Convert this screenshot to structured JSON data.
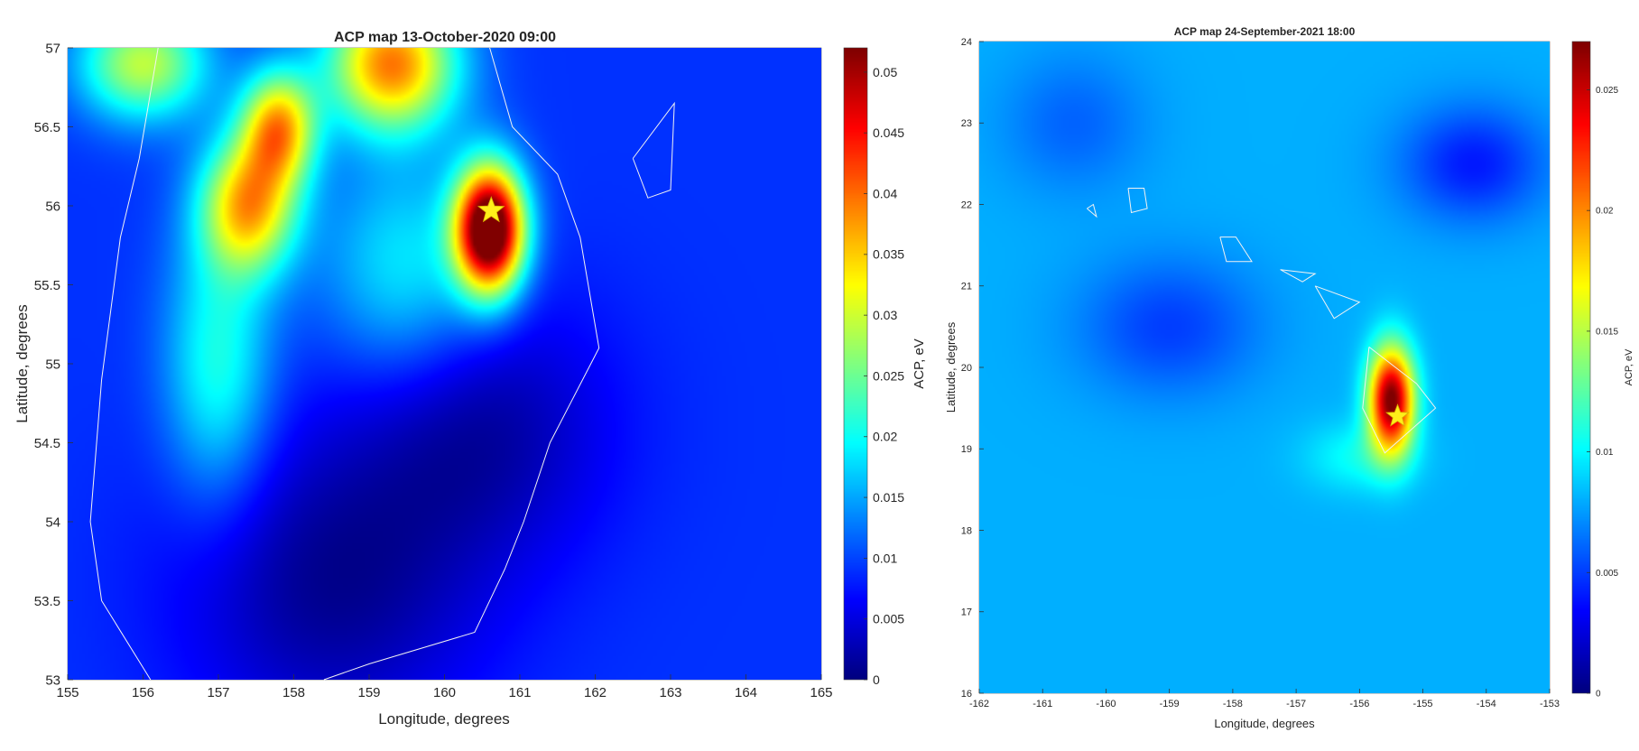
{
  "chart_data": [
    {
      "type": "heatmap",
      "title": "ACP map 13-October-2020 09:00",
      "xlabel": "Longitude, degrees",
      "ylabel": "Latitude, degrees",
      "colorbar_label": "ACP, eV",
      "colormap": "jet",
      "xlim": [
        155,
        165
      ],
      "ylim": [
        53,
        57
      ],
      "clim": [
        0,
        0.052
      ],
      "x_ticks": [
        155,
        156,
        157,
        158,
        159,
        160,
        161,
        162,
        163,
        164,
        165
      ],
      "x_tick_labels": [
        "155",
        "156",
        "157",
        "158",
        "159",
        "160",
        "161",
        "162",
        "163",
        "164",
        "165"
      ],
      "y_ticks": [
        53,
        53.5,
        54,
        54.5,
        55,
        55.5,
        56,
        56.5,
        57
      ],
      "y_tick_labels": [
        "53",
        "53.5",
        "54",
        "54.5",
        "55",
        "55.5",
        "56",
        "56.5",
        "57"
      ],
      "colorbar_ticks": [
        0,
        0.005,
        0.01,
        0.015,
        0.02,
        0.025,
        0.03,
        0.035,
        0.04,
        0.045,
        0.05
      ],
      "colorbar_tick_labels": [
        "0",
        "0.005",
        "0.01",
        "0.015",
        "0.02",
        "0.025",
        "0.03",
        "0.035",
        "0.04",
        "0.045",
        "0.05"
      ],
      "background_value": 0.009,
      "anomalies": [
        {
          "lon": 160.6,
          "lat": 55.85,
          "peak": 0.052,
          "sx": 0.32,
          "sy": 0.28
        },
        {
          "lon": 157.4,
          "lat": 56.0,
          "peak": 0.028,
          "sx": 0.45,
          "sy": 0.3
        },
        {
          "lon": 157.8,
          "lat": 56.5,
          "peak": 0.028,
          "sx": 0.35,
          "sy": 0.25
        },
        {
          "lon": 159.3,
          "lat": 56.9,
          "peak": 0.032,
          "sx": 0.6,
          "sy": 0.3
        },
        {
          "lon": 156.0,
          "lat": 56.9,
          "peak": 0.022,
          "sx": 0.6,
          "sy": 0.25
        },
        {
          "lon": 157.0,
          "lat": 55.0,
          "peak": 0.014,
          "sx": 0.5,
          "sy": 0.6
        },
        {
          "lon": 159.5,
          "lat": 55.6,
          "peak": 0.012,
          "sx": 0.8,
          "sy": 0.5
        },
        {
          "lon": 158.5,
          "lat": 53.6,
          "peak": -0.008,
          "sx": 1.4,
          "sy": 0.7
        },
        {
          "lon": 160.5,
          "lat": 54.6,
          "peak": -0.007,
          "sx": 1.2,
          "sy": 0.6
        }
      ],
      "epicenter": {
        "lon": 160.62,
        "lat": 55.97
      },
      "coastlines": [
        [
          [
            156.2,
            57.0
          ],
          [
            155.95,
            56.3
          ],
          [
            155.7,
            55.8
          ],
          [
            155.45,
            54.9
          ],
          [
            155.3,
            54.0
          ],
          [
            155.45,
            53.5
          ],
          [
            156.1,
            53.0
          ]
        ],
        [
          [
            160.6,
            57.0
          ],
          [
            160.9,
            56.5
          ],
          [
            161.5,
            56.2
          ],
          [
            161.8,
            55.8
          ],
          [
            162.05,
            55.1
          ],
          [
            161.4,
            54.5
          ],
          [
            161.05,
            54.0
          ],
          [
            160.8,
            53.7
          ],
          [
            160.4,
            53.3
          ],
          [
            159.0,
            53.1
          ],
          [
            158.4,
            53.0
          ]
        ],
        [
          [
            162.5,
            56.3
          ],
          [
            163.05,
            56.65
          ],
          [
            163.0,
            56.1
          ],
          [
            162.7,
            56.05
          ],
          [
            162.5,
            56.3
          ]
        ]
      ]
    },
    {
      "type": "heatmap",
      "title": "ACP map 24-September-2021 18:00",
      "xlabel": "Longitude, degrees",
      "ylabel": "Latitude, degrees",
      "colorbar_label": "ACP, eV",
      "colormap": "jet",
      "xlim": [
        -162,
        -153
      ],
      "ylim": [
        16,
        24
      ],
      "clim": [
        0,
        0.027
      ],
      "x_ticks": [
        -162,
        -161,
        -160,
        -159,
        -158,
        -157,
        -156,
        -155,
        -154,
        -153
      ],
      "x_tick_labels": [
        "-162",
        "-161",
        "-160",
        "-159",
        "-158",
        "-157",
        "-156",
        "-155",
        "-154",
        "-153"
      ],
      "y_ticks": [
        16,
        17,
        18,
        19,
        20,
        21,
        22,
        23,
        24
      ],
      "y_tick_labels": [
        "16",
        "17",
        "18",
        "19",
        "20",
        "21",
        "22",
        "23",
        "24"
      ],
      "colorbar_ticks": [
        0,
        0.005,
        0.01,
        0.015,
        0.02,
        0.025
      ],
      "colorbar_tick_labels": [
        "0",
        "0.005",
        "0.01",
        "0.015",
        "0.02",
        "0.025"
      ],
      "background_value": 0.008,
      "anomalies": [
        {
          "lon": -155.5,
          "lat": 19.6,
          "peak": 0.021,
          "sx": 0.25,
          "sy": 0.45
        },
        {
          "lon": -156.0,
          "lat": 18.9,
          "peak": 0.004,
          "sx": 0.6,
          "sy": 0.3
        },
        {
          "lon": -154.2,
          "lat": 22.5,
          "peak": -0.004,
          "sx": 0.8,
          "sy": 0.5
        },
        {
          "lon": -159.0,
          "lat": 20.5,
          "peak": -0.003,
          "sx": 1.0,
          "sy": 0.6
        },
        {
          "lon": -160.5,
          "lat": 23.0,
          "peak": -0.002,
          "sx": 0.8,
          "sy": 0.6
        }
      ],
      "epicenter": {
        "lon": -155.4,
        "lat": 19.4
      },
      "coastlines": [
        [
          [
            -159.65,
            22.2
          ],
          [
            -159.4,
            22.2
          ],
          [
            -159.35,
            21.95
          ],
          [
            -159.6,
            21.9
          ],
          [
            -159.65,
            22.2
          ]
        ],
        [
          [
            -158.2,
            21.6
          ],
          [
            -157.95,
            21.6
          ],
          [
            -157.7,
            21.3
          ],
          [
            -158.1,
            21.3
          ],
          [
            -158.2,
            21.6
          ]
        ],
        [
          [
            -157.25,
            21.2
          ],
          [
            -156.7,
            21.15
          ],
          [
            -156.9,
            21.05
          ],
          [
            -157.25,
            21.2
          ]
        ],
        [
          [
            -156.7,
            21.0
          ],
          [
            -156.0,
            20.8
          ],
          [
            -156.4,
            20.6
          ],
          [
            -156.7,
            21.0
          ]
        ],
        [
          [
            -155.85,
            20.25
          ],
          [
            -155.1,
            19.8
          ],
          [
            -154.8,
            19.5
          ],
          [
            -155.6,
            18.95
          ],
          [
            -155.95,
            19.5
          ],
          [
            -155.85,
            20.25
          ]
        ],
        [
          [
            -160.3,
            21.95
          ],
          [
            -160.2,
            22.0
          ],
          [
            -160.15,
            21.85
          ],
          [
            -160.3,
            21.95
          ]
        ]
      ]
    }
  ]
}
